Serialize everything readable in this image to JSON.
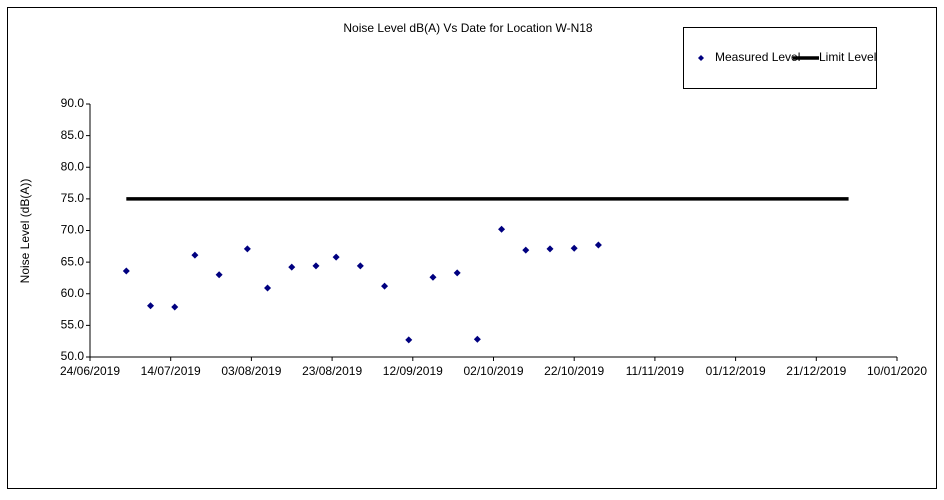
{
  "chart_data": {
    "type": "scatter",
    "title": "Noise Level dB(A) Vs Date for Location W-N18",
    "y_label": "Noise Level (dB(A))",
    "series": [
      {
        "name": "Measured Level",
        "color": "#000080",
        "marker": "diamond",
        "x": [
          "03/07/2019",
          "09/07/2019",
          "15/07/2019",
          "20/07/2019",
          "26/07/2019",
          "02/08/2019",
          "07/08/2019",
          "13/08/2019",
          "19/08/2019",
          "24/08/2019",
          "30/08/2019",
          "05/09/2019",
          "11/09/2019",
          "17/09/2019",
          "23/09/2019",
          "28/09/2019",
          "04/10/2019",
          "10/10/2019",
          "16/10/2019",
          "22/10/2019",
          "28/10/2019"
        ],
        "values": [
          63.6,
          58.1,
          57.9,
          66.1,
          63.0,
          67.1,
          60.9,
          64.2,
          64.4,
          65.8,
          64.4,
          61.2,
          52.7,
          62.6,
          63.3,
          52.8,
          70.2,
          66.9,
          67.1,
          67.2,
          67.7
        ]
      },
      {
        "name": "Limit Level",
        "color": "#000000",
        "marker": "line",
        "x": [
          "03/07/2019",
          "29/12/2019"
        ],
        "values": [
          75,
          75
        ]
      }
    ],
    "xlim": [
      "24/06/2019",
      "10/01/2020"
    ],
    "xticks": [
      "24/06/2019",
      "14/07/2019",
      "03/08/2019",
      "23/08/2019",
      "12/09/2019",
      "02/10/2019",
      "22/10/2019",
      "11/11/2019",
      "01/12/2019",
      "21/12/2019",
      "10/01/2020"
    ],
    "ylim": [
      50,
      90
    ],
    "yticks": [
      {
        "value": 50,
        "label": "50.0"
      },
      {
        "value": 55,
        "label": "55.0"
      },
      {
        "value": 60,
        "label": "60.0"
      },
      {
        "value": 65,
        "label": "65.0"
      },
      {
        "value": 70,
        "label": "70.0"
      },
      {
        "value": 75,
        "label": "75.0"
      },
      {
        "value": 80,
        "label": "80.0"
      },
      {
        "value": 85,
        "label": "85.0"
      },
      {
        "value": 90,
        "label": "90.0"
      }
    ],
    "grid": false,
    "legend": "top-right"
  }
}
